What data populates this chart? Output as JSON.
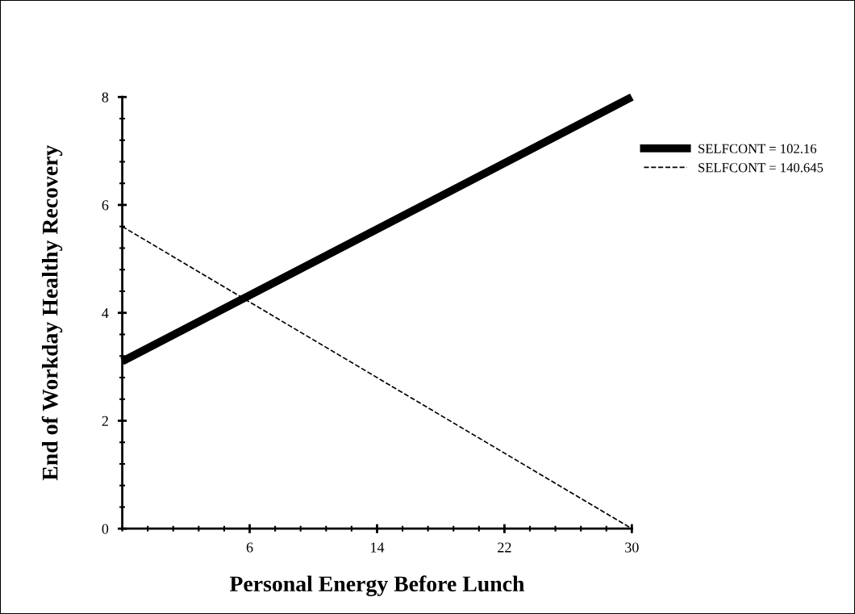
{
  "chart_data": {
    "type": "line",
    "xlabel": "Personal Energy Before Lunch",
    "ylabel": "End of Workday Healthy Recovery",
    "x": [
      -2,
      30
    ],
    "series": [
      {
        "name": "SELFCONT = 102.16",
        "color": "#000000",
        "values": [
          3.1,
          8.0
        ],
        "line_style": "solid"
      },
      {
        "name": "SELFCONT = 140.645",
        "color": "#000000",
        "values": [
          5.6,
          0.0
        ],
        "line_style": "dashed"
      }
    ],
    "xlim": [
      -2,
      30
    ],
    "xticks": [
      6,
      14,
      22,
      30
    ],
    "ylim": [
      0,
      8
    ],
    "yticks": [
      0,
      2,
      4,
      6,
      8
    ],
    "grid": false,
    "legend": "right",
    "marker": "none"
  }
}
